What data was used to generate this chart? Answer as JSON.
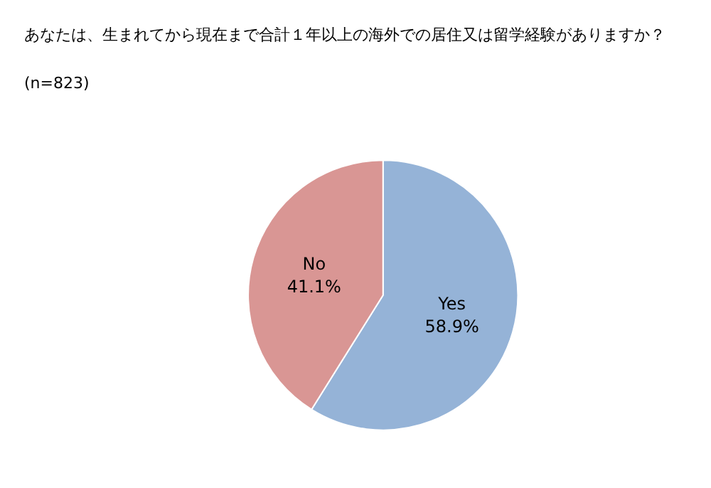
{
  "chart_data": {
    "type": "pie",
    "title": "あなたは、生まれてから現在まで合計１年以上の海外での居住又は留学経験がありますか？",
    "subtitle": "(n=823)",
    "categories": [
      "Yes",
      "No"
    ],
    "values": [
      58.9,
      41.1
    ],
    "colors": [
      "#95b3d7",
      "#d99694"
    ],
    "value_labels": [
      "58.9%",
      "41.1%"
    ],
    "legend": false
  }
}
